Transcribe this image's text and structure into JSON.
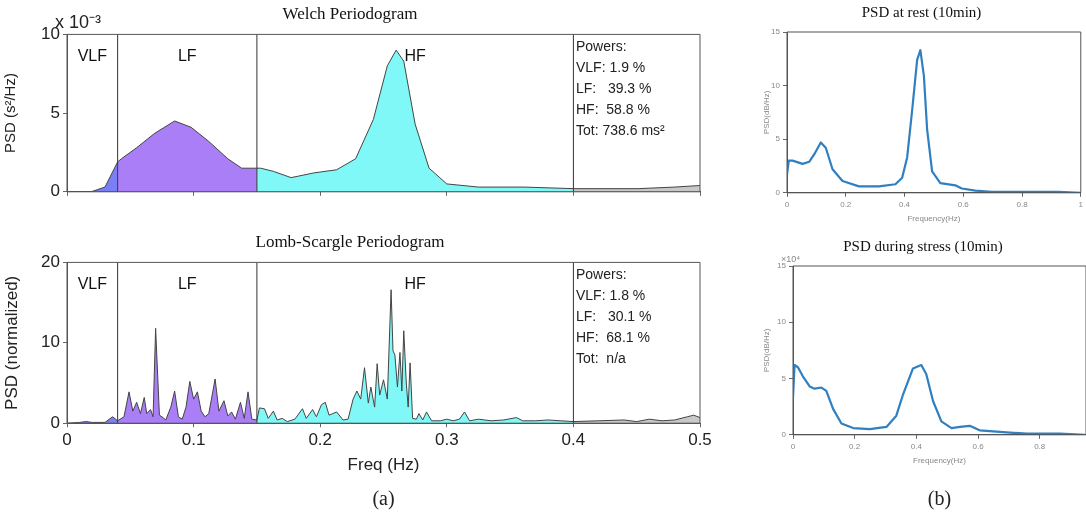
{
  "chart_data": [
    {
      "type": "area",
      "title": "Welch Periodogram",
      "ylabel": "PSD (s²/Hz)",
      "annotations": [
        "x 10⁻³",
        "Powers:\nVLF: 1.9 %\nLF:   39.3 %\nHF:  58.8 %\nTot: 738.6 ms²",
        "VLF",
        "LF",
        "HF"
      ],
      "xlim": [
        0,
        0.5
      ],
      "xticks": [
        0,
        0.1,
        0.2,
        0.3,
        0.4,
        0.5
      ],
      "ylim": [
        0,
        10
      ],
      "yticks": [
        0,
        5,
        10
      ],
      "tick_labels": "y",
      "grid": false,
      "legend": false,
      "marker": "none",
      "ref_lines": [
        {
          "axis": "x",
          "value": 0.04
        },
        {
          "axis": "x",
          "value": 0.15
        },
        {
          "axis": "x",
          "value": 0.4
        }
      ],
      "series": [
        {
          "color": "#7b7ff5",
          "x": [
            0,
            0.019,
            0.03,
            0.04
          ],
          "values": [
            0,
            0,
            0.3,
            1.9
          ]
        },
        {
          "color": "#a97ef7",
          "x": [
            0.04,
            0.043,
            0.055,
            0.069,
            0.085,
            0.098,
            0.112,
            0.127,
            0.138,
            0.15
          ],
          "values": [
            1.9,
            2.1,
            2.8,
            3.7,
            4.5,
            4.1,
            3.2,
            2.1,
            1.5,
            1.5
          ]
        },
        {
          "color": "#80f8f8",
          "x": [
            0.15,
            0.153,
            0.163,
            0.177,
            0.195,
            0.213,
            0.228,
            0.242,
            0.253,
            0.26,
            0.266,
            0.275,
            0.286,
            0.3,
            0.325,
            0.361,
            0.4
          ],
          "values": [
            1.5,
            1.5,
            1.3,
            0.9,
            1.2,
            1.4,
            2.1,
            4.6,
            8.0,
            9.0,
            8.3,
            4.3,
            1.5,
            0.5,
            0.3,
            0.3,
            0.2
          ]
        },
        {
          "color": "#c8c8c8",
          "x": [
            0.4,
            0.451,
            0.48,
            0.5
          ],
          "values": [
            0.2,
            0.2,
            0.3,
            0.4
          ]
        }
      ]
    },
    {
      "type": "area",
      "title": "Lomb-Scargle Periodogram",
      "xlabel": "Freq (Hz)",
      "ylabel": "PSD (normalized)",
      "annotations": [
        "Powers:\nVLF: 1.8 %\nLF:   30.1 %\nHF:  68.1 %\nTot:  n/a",
        "(a)",
        "VLF",
        "LF",
        "HF"
      ],
      "xlim": [
        0,
        0.5
      ],
      "xticks": [
        0,
        0.1,
        0.2,
        0.3,
        0.4,
        0.5
      ],
      "ylim": [
        0,
        20
      ],
      "yticks": [
        0,
        10,
        20
      ],
      "grid": false,
      "legend": false,
      "marker": "none",
      "ref_lines": [
        {
          "axis": "x",
          "value": 0.04
        },
        {
          "axis": "x",
          "value": 0.15
        },
        {
          "axis": "x",
          "value": 0.4
        }
      ],
      "series": [
        {
          "color": "#7b7ff5",
          "x": [
            0,
            0.01,
            0.015,
            0.02,
            0.03,
            0.036,
            0.04
          ],
          "values": [
            0,
            0.1,
            0.2,
            0.1,
            0.1,
            0.8,
            0.3
          ]
        },
        {
          "color": "#a97ef7",
          "x": [
            0.04,
            0.045,
            0.049,
            0.052,
            0.055,
            0.058,
            0.061,
            0.063,
            0.066,
            0.068,
            0.07,
            0.073,
            0.075,
            0.078,
            0.082,
            0.085,
            0.088,
            0.091,
            0.094,
            0.097,
            0.1,
            0.103,
            0.106,
            0.109,
            0.112,
            0.117,
            0.12,
            0.124,
            0.127,
            0.13,
            0.133,
            0.137,
            0.14,
            0.143,
            0.146,
            0.15
          ],
          "values": [
            0.3,
            0.8,
            3.9,
            1.5,
            2.6,
            1.2,
            3.2,
            1.2,
            1.7,
            0.8,
            11.8,
            1.0,
            0.8,
            0.4,
            2.0,
            4.0,
            0.8,
            0.5,
            2.0,
            5.2,
            3.0,
            3.9,
            1.5,
            0.8,
            1.2,
            5.5,
            1.5,
            2.8,
            0.9,
            1.4,
            0.5,
            2.6,
            0.6,
            3.9,
            0.5,
            0.4
          ]
        },
        {
          "color": "#80f8f8",
          "x": [
            0.15,
            0.152,
            0.156,
            0.159,
            0.163,
            0.166,
            0.17,
            0.174,
            0.18,
            0.186,
            0.189,
            0.194,
            0.197,
            0.201,
            0.204,
            0.207,
            0.213,
            0.218,
            0.222,
            0.226,
            0.229,
            0.232,
            0.235,
            0.238,
            0.24,
            0.243,
            0.245,
            0.247,
            0.25,
            0.253,
            0.256,
            0.2575,
            0.259,
            0.261,
            0.263,
            0.2645,
            0.266,
            0.268,
            0.2695,
            0.271,
            0.273,
            0.276,
            0.278,
            0.281,
            0.284,
            0.288,
            0.295,
            0.3,
            0.305,
            0.31,
            0.314,
            0.318,
            0.325,
            0.335,
            0.345,
            0.355,
            0.36,
            0.37,
            0.38,
            0.39,
            0.4
          ],
          "values": [
            0.4,
            1.9,
            1.8,
            0.6,
            1.5,
            0.4,
            0.6,
            0.2,
            0.5,
            1.8,
            0.6,
            1.7,
            0.8,
            2.3,
            2.6,
            1.0,
            1.4,
            0.4,
            0.5,
            3.0,
            4.0,
            3.0,
            6.9,
            2.5,
            4.5,
            2.0,
            7.4,
            3.5,
            5.4,
            3.0,
            16.6,
            9.0,
            8.5,
            4.5,
            8.8,
            4.0,
            11.5,
            5.0,
            2.0,
            7.5,
            0.6,
            0.5,
            1.2,
            0.4,
            1.4,
            0.3,
            0.3,
            0.5,
            0.3,
            0.5,
            1.4,
            0.3,
            0.5,
            0.3,
            0.4,
            0.7,
            0.3,
            0.3,
            0.4,
            0.3,
            0.2
          ]
        },
        {
          "color": "#c8c8c8",
          "x": [
            0.4,
            0.42,
            0.44,
            0.45,
            0.46,
            0.47,
            0.48,
            0.49,
            0.495,
            0.5
          ],
          "values": [
            0.2,
            0.3,
            0.4,
            0.2,
            0.5,
            0.3,
            0.4,
            0.8,
            1.0,
            0.7
          ]
        }
      ]
    },
    {
      "type": "line",
      "title": "PSD at rest (10min)",
      "xlabel": "Frequency(Hz)",
      "ylabel": "PSD(dB/Hz)",
      "xlim": [
        0,
        1
      ],
      "xticks": [
        0,
        0.2,
        0.4,
        0.6,
        0.8,
        1
      ],
      "ylim": [
        0,
        15
      ],
      "yticks": [
        0,
        5,
        10,
        15
      ],
      "grid": false,
      "legend": false,
      "marker": "none",
      "series": [
        {
          "color": "#2f7fc1",
          "x": [
            0,
            0.006,
            0.019,
            0.053,
            0.076,
            0.093,
            0.115,
            0.132,
            0.155,
            0.189,
            0.245,
            0.313,
            0.369,
            0.392,
            0.409,
            0.426,
            0.443,
            0.454,
            0.466,
            0.477,
            0.494,
            0.522,
            0.573,
            0.595,
            0.641,
            0.697,
            0.81,
            0.923,
            1
          ],
          "values": [
            1.7,
            3.0,
            3.0,
            2.7,
            2.9,
            3.6,
            4.7,
            4.2,
            2.2,
            1.1,
            0.6,
            0.6,
            0.8,
            1.4,
            3.3,
            7.7,
            12.4,
            13.3,
            10.9,
            5.9,
            2.0,
            0.9,
            0.7,
            0.4,
            0.2,
            0.1,
            0.1,
            0.1,
            0
          ]
        }
      ]
    },
    {
      "type": "line",
      "title": "PSD during stress (10min)",
      "xlabel": "Frequency(Hz)",
      "ylabel": "PSD(dB/Hz)",
      "annotations": [
        "×10⁴",
        "(b)"
      ],
      "xlim": [
        0,
        0.95
      ],
      "xticks": [
        0,
        0.2,
        0.4,
        0.6,
        0.8
      ],
      "ylim": [
        0,
        15
      ],
      "yticks": [
        0,
        5,
        10,
        15
      ],
      "grid": false,
      "legend": false,
      "marker": "none",
      "series": [
        {
          "color": "#2f7fc1",
          "x": [
            0,
            0.005,
            0.016,
            0.032,
            0.054,
            0.07,
            0.092,
            0.108,
            0.13,
            0.157,
            0.195,
            0.249,
            0.303,
            0.335,
            0.357,
            0.389,
            0.416,
            0.432,
            0.454,
            0.481,
            0.514,
            0.541,
            0.573,
            0.605,
            0.649,
            0.703,
            0.757,
            0.865,
            0.946
          ],
          "values": [
            3.3,
            6.2,
            6.0,
            5.2,
            4.3,
            4.1,
            4.2,
            3.9,
            2.3,
            1.0,
            0.6,
            0.5,
            0.7,
            1.7,
            3.6,
            5.9,
            6.2,
            5.4,
            3.0,
            1.2,
            0.6,
            0.7,
            0.8,
            0.4,
            0.3,
            0.2,
            0.1,
            0.1,
            0
          ]
        }
      ]
    }
  ]
}
